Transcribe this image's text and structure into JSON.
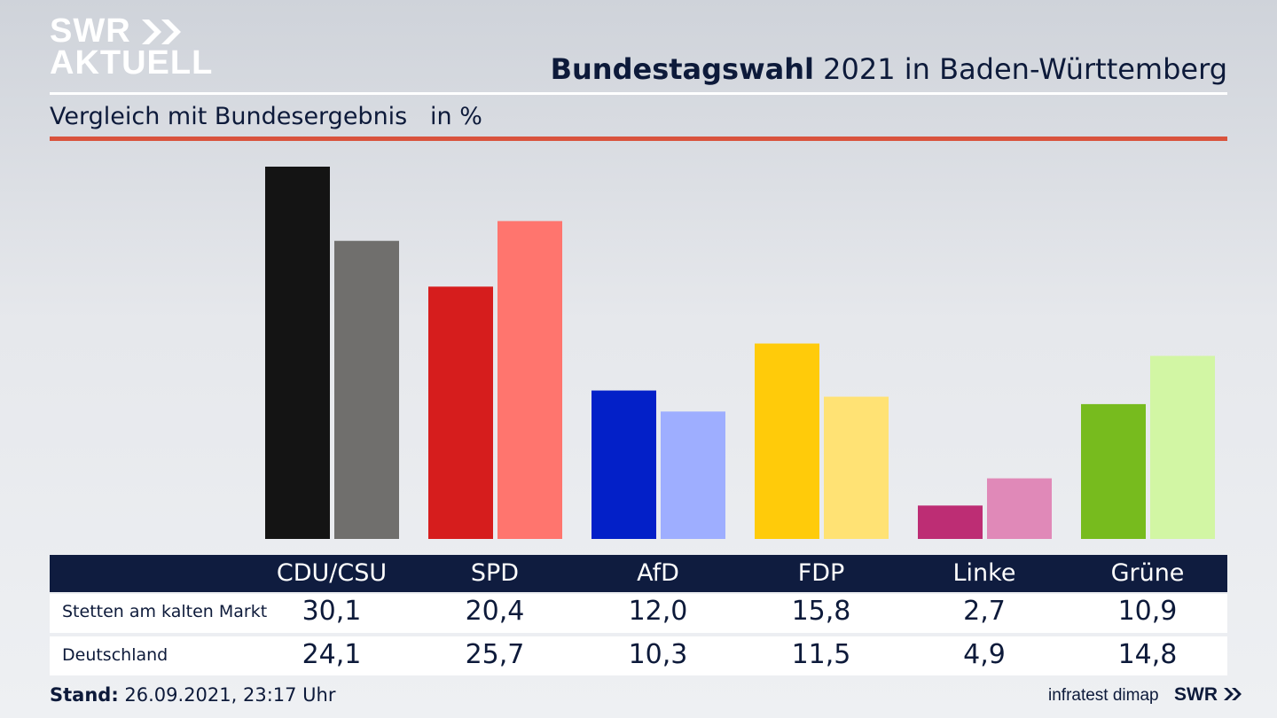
{
  "header": {
    "logo_line1": "SWR",
    "logo_line2": "AKTUELL",
    "title_bold": "Bundestagswahl",
    "title_rest": " 2021 in Baden-Württemberg",
    "subtitle": "Vergleich mit Bundesergebnis   in %"
  },
  "footer": {
    "stand_label": "Stand:",
    "stand_value": " 26.09.2021, 23:17 Uhr",
    "source": "infratest dimap",
    "brand": "SWR"
  },
  "table": {
    "rows": [
      {
        "label": "Stetten am kalten Markt",
        "values": [
          "30,1",
          "20,4",
          "12,0",
          "15,8",
          "2,7",
          "10,9"
        ]
      },
      {
        "label": "Deutschland",
        "values": [
          "24,1",
          "25,7",
          "10,3",
          "11,5",
          "4,9",
          "14,8"
        ]
      }
    ]
  },
  "chart_data": {
    "type": "bar",
    "categories": [
      "CDU/CSU",
      "SPD",
      "AfD",
      "FDP",
      "Linke",
      "Grüne"
    ],
    "series": [
      {
        "name": "Stetten am kalten Markt",
        "values": [
          30.1,
          20.4,
          12.0,
          15.8,
          2.7,
          10.9
        ],
        "colors": [
          "#141414",
          "#d61d1d",
          "#0320c8",
          "#ffcb0a",
          "#bd2d74",
          "#77bb1e"
        ]
      },
      {
        "name": "Deutschland",
        "values": [
          24.1,
          25.7,
          10.3,
          11.5,
          4.9,
          14.8
        ],
        "colors": [
          "#706f6d",
          "#ff756e",
          "#9eaeff",
          "#ffe274",
          "#e089b8",
          "#d2f6a4"
        ]
      }
    ],
    "ylim": [
      0,
      30.1
    ],
    "grid": false,
    "legend": "table-below"
  }
}
